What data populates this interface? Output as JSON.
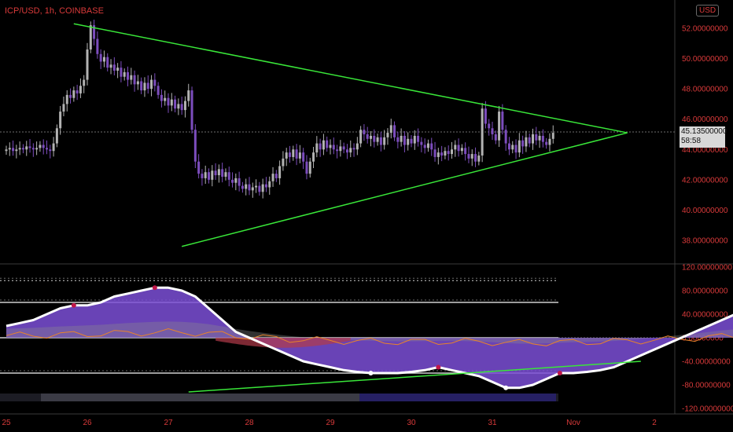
{
  "header": {
    "symbol": "ICP/USD, 1h, COINBASE",
    "currency": "USD"
  },
  "price_tag": {
    "last_price": "45.13500000",
    "countdown": "58:58"
  },
  "colors": {
    "background": "#000000",
    "axis_text": "#d93a3a",
    "bull_candle": "#b3b3b3",
    "bear_candle": "#7c4dbd",
    "trendline": "#39e639",
    "oscillator_fill": "#7b4fd6",
    "oscillator_line": "#ffffff",
    "bear_fill": "#b23a4a",
    "signal_line": "#e8832a",
    "volume_area": "#8c8c8c",
    "dot_red": "#c0174a",
    "dot_white": "#ffffff"
  },
  "chart_data": [
    {
      "type": "candlestick",
      "x_ticks": [
        "25",
        "26",
        "27",
        "28",
        "29",
        "30",
        "31",
        "Nov",
        "2"
      ],
      "y_ticks": [
        "52.00000000",
        "50.00000000",
        "48.00000000",
        "46.00000000",
        "44.00000000",
        "42.00000000",
        "40.00000000",
        "38.00000000"
      ],
      "ylim": [
        37.2,
        53.2
      ],
      "last_price": 45.135,
      "closes": [
        44.0,
        44.1,
        43.9,
        44.0,
        44.1,
        44.0,
        44.2,
        44.1,
        44.0,
        44.1,
        44.3,
        44.1,
        44.0,
        43.9,
        44.4,
        45.4,
        46.5,
        47.0,
        47.6,
        47.4,
        47.9,
        47.7,
        48.2,
        48.6,
        50.6,
        52.2,
        51.3,
        50.3,
        49.8,
        50.1,
        49.4,
        49.6,
        49.2,
        49.4,
        48.8,
        49.1,
        48.6,
        48.9,
        48.3,
        48.5,
        47.9,
        48.4,
        48.0,
        48.6,
        48.2,
        47.6,
        47.2,
        47.4,
        46.9,
        47.3,
        46.7,
        47.0,
        46.6,
        47.2,
        47.9,
        45.3,
        43.2,
        42.4,
        42.1,
        42.5,
        42.0,
        42.6,
        42.3,
        42.7,
        42.2,
        42.5,
        42.0,
        41.8,
        42.1,
        41.6,
        41.4,
        41.7,
        41.3,
        41.5,
        41.6,
        41.2,
        41.7,
        41.5,
        41.9,
        42.4,
        42.1,
        42.9,
        43.4,
        43.8,
        43.5,
        44.0,
        43.4,
        43.8,
        43.2,
        42.4,
        43.2,
        43.8,
        44.4,
        44.0,
        44.6,
        44.1,
        44.3,
        44.0,
        43.9,
        44.2,
        44.0,
        43.8,
        44.1,
        44.0,
        44.4,
        45.3,
        45.0,
        44.7,
        44.9,
        44.5,
        44.8,
        44.3,
        44.8,
        45.1,
        45.6,
        44.8,
        44.5,
        44.9,
        44.3,
        44.7,
        44.4,
        44.9,
        44.5,
        44.3,
        44.1,
        44.4,
        44.0,
        43.5,
        43.8,
        43.6,
        43.9,
        43.7,
        44.0,
        44.3,
        43.9,
        44.1,
        43.7,
        43.4,
        43.7,
        43.2,
        43.6,
        46.7,
        45.7,
        45.4,
        45.0,
        44.6,
        46.5,
        45.3,
        44.4,
        44.0,
        44.3,
        43.8,
        44.6,
        44.2,
        44.8,
        44.4,
        45.0,
        44.6,
        44.9,
        44.5,
        44.3,
        44.7,
        45.1
      ],
      "trendlines": [
        {
          "from": {
            "x": "25 Oct 20:00",
            "y": 52.3
          },
          "to": {
            "x": "1 Nov 16:00",
            "y": 45.1
          }
        },
        {
          "from": {
            "x": "27 Oct 04:00",
            "y": 37.6
          },
          "to": {
            "x": "1 Nov 16:00",
            "y": 45.1
          }
        }
      ]
    },
    {
      "type": "oscillator",
      "y_ticks": [
        "120.00000000",
        "80.00000000",
        "40.00000000",
        "0.00000000",
        "-40.00000000",
        "-80.00000000",
        "-120.00000000"
      ],
      "ylim": [
        -120,
        120
      ],
      "levels": [
        97,
        60,
        0,
        -60
      ],
      "main_line": [
        20,
        25,
        30,
        40,
        50,
        55,
        55,
        60,
        70,
        75,
        80,
        85,
        85,
        80,
        70,
        50,
        30,
        10,
        0,
        -10,
        -20,
        -30,
        -40,
        -45,
        -50,
        -55,
        -58,
        -60,
        -60,
        -60,
        -58,
        -55,
        -50,
        -55,
        -60,
        -65,
        -75,
        -85,
        -85,
        -80,
        -70,
        -60,
        -60,
        -58,
        -55,
        -50,
        -40,
        -30,
        -20,
        -10,
        0,
        10,
        20,
        30,
        40,
        50,
        55,
        50,
        40,
        20,
        0,
        -10,
        -10,
        0,
        20,
        40,
        55,
        50,
        40,
        30,
        20,
        10,
        0,
        10,
        30,
        45,
        55,
        50,
        40,
        30,
        25,
        30,
        40,
        45,
        30,
        10,
        -10,
        -30,
        -50,
        -60,
        -55,
        -50,
        -45,
        -40,
        -30,
        -10,
        10,
        30,
        40,
        35,
        20,
        0,
        0,
        10,
        20,
        20
      ],
      "signal_line": [
        30,
        32,
        35,
        40,
        45,
        48,
        52,
        56,
        62,
        68,
        72,
        76,
        78,
        76,
        70,
        60,
        45,
        28,
        14,
        2,
        -10,
        -20,
        -28,
        -35,
        -40,
        -45,
        -50,
        -53,
        -55,
        -56,
        -56,
        -55,
        -53,
        -53,
        -55,
        -58,
        -62,
        -68,
        -72,
        -72,
        -70,
        -66,
        -63,
        -60,
        -57,
        -54,
        -48,
        -40,
        -32,
        -23,
        -13,
        -3,
        7,
        17,
        26,
        35,
        42,
        45,
        43,
        35,
        22,
        10,
        2,
        0,
        8,
        20,
        33,
        40,
        40,
        36,
        30,
        22,
        14,
        12,
        18,
        28,
        38,
        42,
        41,
        37,
        33,
        32,
        35,
        38,
        35,
        24,
        10,
        -6,
        -22,
        -36,
        -44,
        -46,
        -46,
        -44,
        -38,
        -27,
        -13,
        3,
        17,
        24,
        23,
        14,
        8,
        8,
        13,
        16
      ],
      "trendline": {
        "from": {
          "x": "27 Oct 06:00",
          "y": -92
        },
        "to": {
          "x": "1 Nov 20:00",
          "y": -40
        }
      }
    }
  ]
}
